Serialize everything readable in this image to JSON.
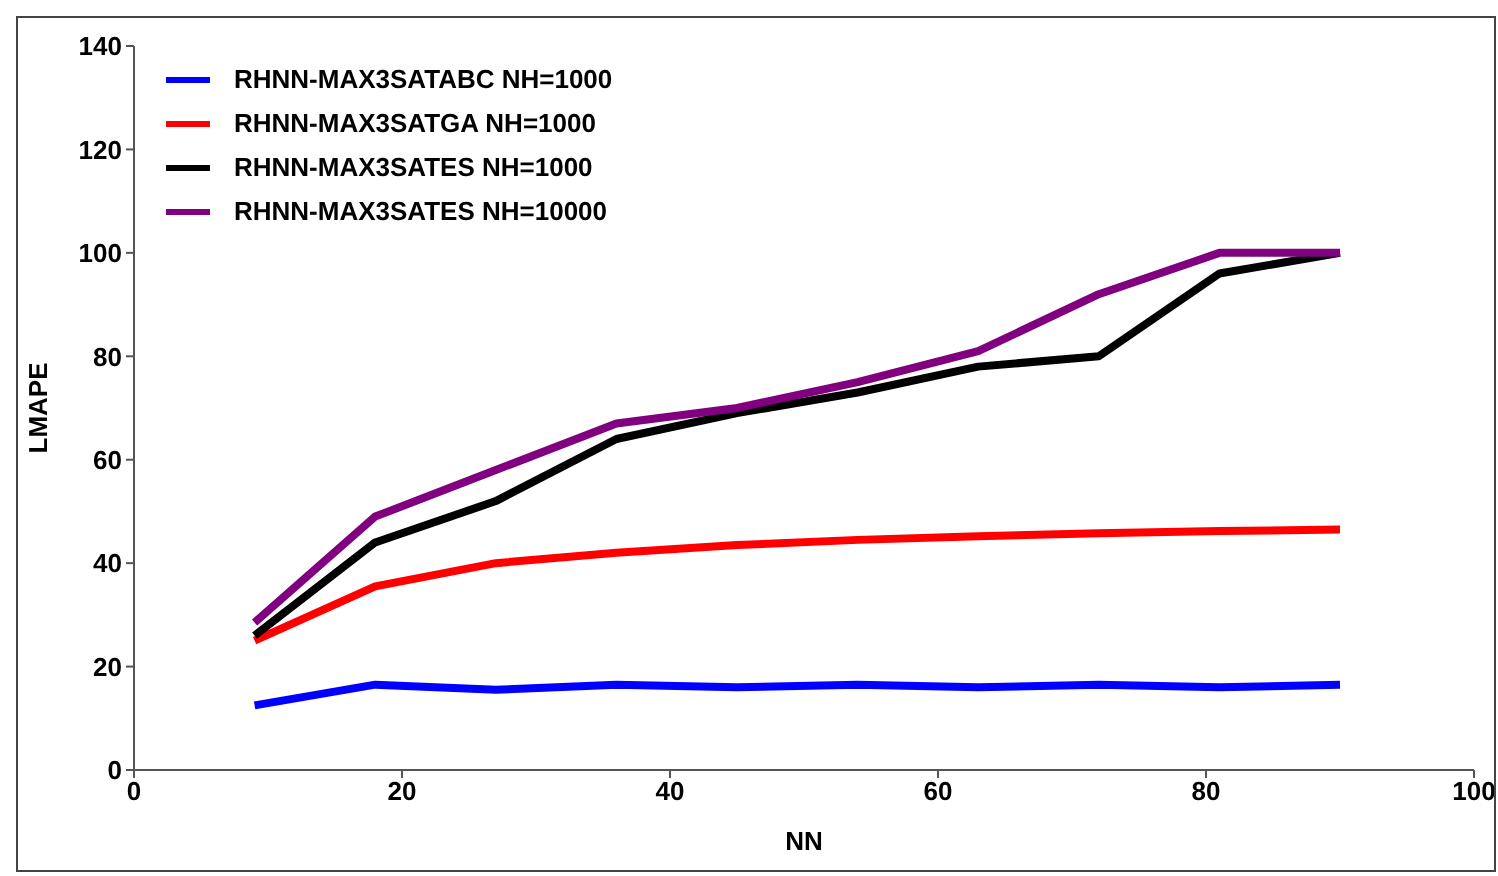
{
  "chart_data": {
    "type": "line",
    "xlabel": "NN",
    "ylabel": "LMAPE",
    "x": [
      9,
      18,
      27,
      36,
      45,
      54,
      63,
      72,
      81,
      90
    ],
    "series": [
      {
        "name": "RHNN-MAX3SATABC NH=1000",
        "color": "#0000ff",
        "values": [
          12.5,
          16.5,
          15.5,
          16.5,
          16,
          16.5,
          16,
          16.5,
          16,
          16.5
        ]
      },
      {
        "name": "RHNN-MAX3SATGA NH=1000",
        "color": "#ff0000",
        "values": [
          25,
          35.5,
          40,
          42,
          43.5,
          44.5,
          45.2,
          45.8,
          46.2,
          46.5
        ]
      },
      {
        "name": "RHNN-MAX3SATES NH=1000",
        "color": "#000000",
        "values": [
          26,
          44,
          52,
          64,
          69,
          73,
          78,
          80,
          96,
          100
        ]
      },
      {
        "name": "RHNN-MAX3SATES NH=10000",
        "color": "#800080",
        "values": [
          28.5,
          49,
          58,
          67,
          70,
          75,
          81,
          92,
          100,
          100
        ]
      }
    ],
    "xlim": [
      0,
      100
    ],
    "xticks": [
      0,
      20,
      40,
      60,
      80,
      100
    ],
    "ylim": [
      0,
      140
    ],
    "yticks": [
      0,
      20,
      40,
      60,
      80,
      100,
      120,
      140
    ],
    "grid": false,
    "legend": "top left",
    "marker": "none",
    "line_style": "solid"
  }
}
